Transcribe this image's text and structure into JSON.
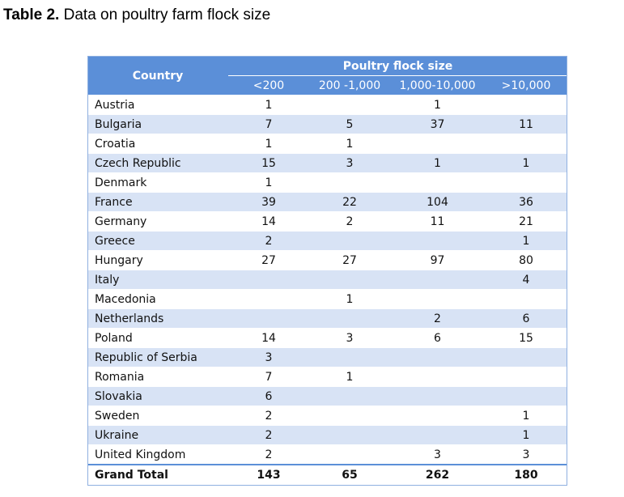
{
  "caption": {
    "label": "Table 2.",
    "text": " Data on poultry farm flock size"
  },
  "table": {
    "country_header": "Country",
    "group_header": "Poultry flock size",
    "columns": [
      "<200",
      "200 -1,000",
      "1,000-10,000",
      ">10,000"
    ],
    "rows": [
      [
        "Austria",
        "1",
        "",
        "1",
        ""
      ],
      [
        "Bulgaria",
        "7",
        "5",
        "37",
        "11"
      ],
      [
        "Croatia",
        "1",
        "1",
        "",
        ""
      ],
      [
        "Czech Republic",
        "15",
        "3",
        "1",
        "1"
      ],
      [
        "Denmark",
        "1",
        "",
        "",
        ""
      ],
      [
        "France",
        "39",
        "22",
        "104",
        "36"
      ],
      [
        "Germany",
        "14",
        "2",
        "11",
        "21"
      ],
      [
        "Greece",
        "2",
        "",
        "",
        "1"
      ],
      [
        "Hungary",
        "27",
        "27",
        "97",
        "80"
      ],
      [
        "Italy",
        "",
        "",
        "",
        "4"
      ],
      [
        "Macedonia",
        "",
        "1",
        "",
        ""
      ],
      [
        "Netherlands",
        "",
        "",
        "2",
        "6"
      ],
      [
        "Poland",
        "14",
        "3",
        "6",
        "15"
      ],
      [
        "Republic of Serbia",
        "3",
        "",
        "",
        ""
      ],
      [
        "Romania",
        "7",
        "1",
        "",
        ""
      ],
      [
        "Slovakia",
        "6",
        "",
        "",
        ""
      ],
      [
        "Sweden",
        "2",
        "",
        "",
        "1"
      ],
      [
        "Ukraine",
        "2",
        "",
        "",
        "1"
      ],
      [
        "United Kingdom",
        "2",
        "",
        "3",
        "3"
      ]
    ],
    "total": [
      "Grand Total",
      "143",
      "65",
      "262",
      "180"
    ]
  },
  "colors": {
    "header_bg": "#5b8fd8",
    "band_bg": "#d8e3f5"
  }
}
